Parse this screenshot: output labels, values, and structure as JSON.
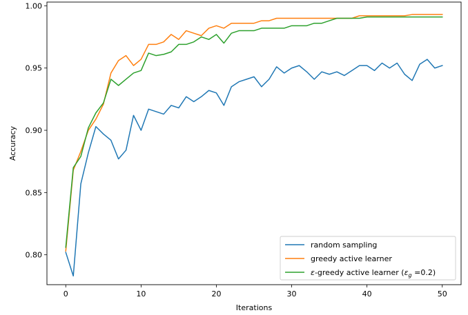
{
  "chart_data": {
    "type": "line",
    "title": "",
    "xlabel": "Iterations",
    "ylabel": "Accuracy",
    "xlim": [
      -2.5,
      52.5
    ],
    "ylim": [
      0.776,
      1.003
    ],
    "xticks": [
      0,
      10,
      20,
      30,
      40,
      50
    ],
    "xtick_labels": [
      "0",
      "10",
      "20",
      "30",
      "40",
      "50"
    ],
    "yticks": [
      0.8,
      0.85,
      0.9,
      0.95,
      1.0
    ],
    "ytick_labels": [
      "0.80",
      "0.85",
      "0.90",
      "0.95",
      "1.00"
    ],
    "grid": false,
    "legend_position": "lower-right",
    "x": [
      0,
      1,
      2,
      3,
      4,
      5,
      6,
      7,
      8,
      9,
      10,
      11,
      12,
      13,
      14,
      15,
      16,
      17,
      18,
      19,
      20,
      21,
      22,
      23,
      24,
      25,
      26,
      27,
      28,
      29,
      30,
      31,
      32,
      33,
      34,
      35,
      36,
      37,
      38,
      39,
      40,
      41,
      42,
      43,
      44,
      45,
      46,
      47,
      48,
      49,
      50
    ],
    "series": [
      {
        "name": "random sampling",
        "color": "#1f77b4",
        "values": [
          0.802,
          0.783,
          0.857,
          0.882,
          0.903,
          0.897,
          0.892,
          0.877,
          0.884,
          0.912,
          0.9,
          0.917,
          0.915,
          0.913,
          0.92,
          0.918,
          0.927,
          0.923,
          0.927,
          0.932,
          0.93,
          0.92,
          0.935,
          0.939,
          0.941,
          0.943,
          0.935,
          0.941,
          0.951,
          0.946,
          0.95,
          0.952,
          0.947,
          0.941,
          0.947,
          0.945,
          0.947,
          0.944,
          0.948,
          0.952,
          0.952,
          0.948,
          0.954,
          0.95,
          0.954,
          0.945,
          0.94,
          0.953,
          0.957,
          0.95,
          0.952
        ]
      },
      {
        "name": "greedy active learner",
        "color": "#ff7f0e",
        "values": [
          0.803,
          0.868,
          0.883,
          0.9,
          0.909,
          0.921,
          0.946,
          0.956,
          0.96,
          0.952,
          0.957,
          0.969,
          0.969,
          0.971,
          0.977,
          0.973,
          0.98,
          0.978,
          0.976,
          0.982,
          0.984,
          0.982,
          0.986,
          0.986,
          0.986,
          0.986,
          0.988,
          0.988,
          0.99,
          0.99,
          0.99,
          0.99,
          0.99,
          0.99,
          0.99,
          0.99,
          0.99,
          0.99,
          0.99,
          0.992,
          0.992,
          0.992,
          0.992,
          0.992,
          0.992,
          0.992,
          0.993,
          0.993,
          0.993,
          0.993,
          0.993
        ]
      },
      {
        "name": "ε-greedy active learner (εg =0.2)",
        "color": "#2ca02c",
        "values": [
          0.806,
          0.87,
          0.879,
          0.902,
          0.914,
          0.922,
          0.941,
          0.936,
          0.941,
          0.946,
          0.948,
          0.962,
          0.96,
          0.961,
          0.963,
          0.969,
          0.969,
          0.971,
          0.975,
          0.973,
          0.977,
          0.97,
          0.978,
          0.98,
          0.98,
          0.98,
          0.982,
          0.982,
          0.982,
          0.982,
          0.984,
          0.984,
          0.984,
          0.986,
          0.986,
          0.988,
          0.99,
          0.99,
          0.99,
          0.99,
          0.991,
          0.991,
          0.991,
          0.991,
          0.991,
          0.991,
          0.991,
          0.991,
          0.991,
          0.991,
          0.991
        ]
      }
    ],
    "legend": {
      "entries": [
        {
          "text": "random sampling"
        },
        {
          "text": "greedy active learner"
        },
        {
          "prefix": "ε",
          "mid": "-greedy active learner (",
          "sym": "ε",
          "sub": "g",
          "suffix": " =0.2)"
        }
      ]
    }
  }
}
